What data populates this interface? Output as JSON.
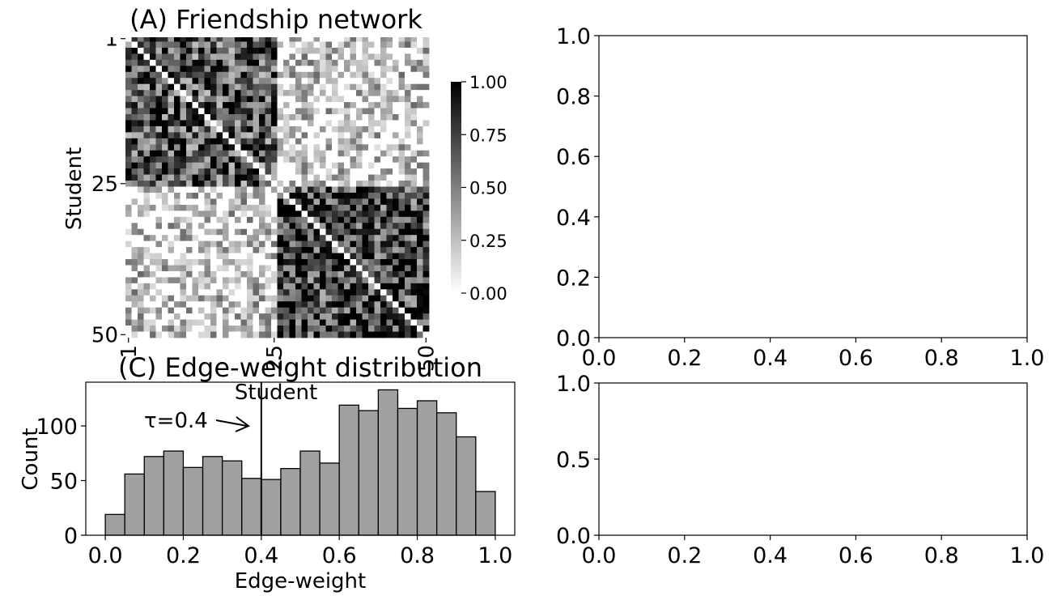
{
  "chart_data": [
    {
      "type": "heatmap",
      "title": "(A) Friendship network",
      "ylabel": "Student",
      "xlabel": "Student",
      "size": 50,
      "ytick_labels": [
        "1",
        "25",
        "50"
      ],
      "xtick_labels": [
        "1",
        "25",
        "50"
      ],
      "blocks": [
        {
          "rows": [
            1,
            25
          ],
          "cols": [
            1,
            25
          ],
          "mean_weight": 0.68
        },
        {
          "rows": [
            26,
            50
          ],
          "cols": [
            26,
            50
          ],
          "mean_weight": 0.75
        },
        {
          "rows": [
            1,
            25
          ],
          "cols": [
            26,
            50
          ],
          "mean_weight": 0.15
        },
        {
          "rows": [
            26,
            50
          ],
          "cols": [
            1,
            25
          ],
          "mean_weight": 0.15
        }
      ],
      "diagonal": 0,
      "colorbar": {
        "range": [
          0,
          1
        ],
        "tick_labels": [
          "0.00",
          "0.25",
          "0.50",
          "0.75",
          "1.00"
        ],
        "colormap": "white-to-black"
      }
    },
    {
      "type": "empty",
      "xlim": [
        0,
        1
      ],
      "ylim": [
        0,
        1
      ],
      "xtick_labels": [
        "0.0",
        "0.2",
        "0.4",
        "0.6",
        "0.8",
        "1.0"
      ],
      "ytick_labels": [
        "0.0",
        "0.2",
        "0.4",
        "0.6",
        "0.8",
        "1.0"
      ]
    },
    {
      "type": "bar",
      "title": "(C) Edge-weight distribution",
      "xlabel": "Edge-weight",
      "ylabel": "Count",
      "bin_edges": [
        0.0,
        0.05,
        0.1,
        0.15,
        0.2,
        0.25,
        0.3,
        0.35,
        0.4,
        0.45,
        0.5,
        0.55,
        0.6,
        0.65,
        0.7,
        0.75,
        0.8,
        0.85,
        0.9,
        0.95,
        1.0
      ],
      "values": [
        19,
        56,
        72,
        77,
        62,
        72,
        68,
        52,
        51,
        61,
        77,
        66,
        119,
        114,
        133,
        116,
        123,
        112,
        90,
        40
      ],
      "xlim": [
        -0.05,
        1.05
      ],
      "ylim": [
        0,
        140
      ],
      "xtick_labels": [
        "0.0",
        "0.2",
        "0.4",
        "0.6",
        "0.8",
        "1.0"
      ],
      "ytick_labels": [
        "0",
        "50",
        "100"
      ],
      "bar_color": "#a0a0a0",
      "threshold": {
        "value": 0.4,
        "label": "τ=0.4"
      }
    },
    {
      "type": "empty",
      "xlim": [
        0,
        1
      ],
      "ylim": [
        0,
        1
      ],
      "xtick_labels": [
        "0.0",
        "0.2",
        "0.4",
        "0.6",
        "0.8",
        "1.0"
      ],
      "ytick_labels": [
        "0.0",
        "0.5",
        "1.0"
      ]
    }
  ]
}
